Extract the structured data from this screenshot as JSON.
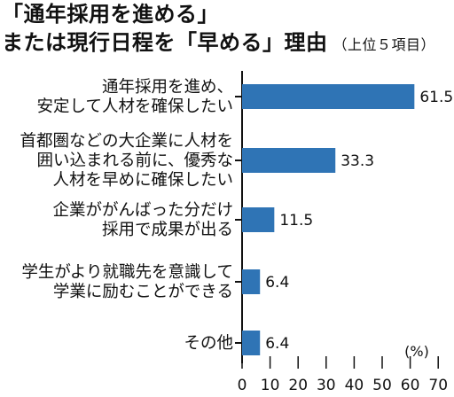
{
  "title": {
    "line1": "「通年採用を進める」",
    "line2": "または現行日程を「早める」理由",
    "subtitle": "（上位５項目）"
  },
  "colors": {
    "bar": "#2f74b5",
    "axis": "#111111",
    "text": "#111111"
  },
  "chart_data": {
    "type": "bar",
    "orientation": "horizontal",
    "title": "「通年採用を進める」または現行日程を「早める」理由",
    "subtitle": "（上位５項目）",
    "unit": "(%)",
    "categories": [
      [
        "通年採用を進め、",
        "安定して人材を確保したい"
      ],
      [
        "首都圏などの大企業に人材を",
        "囲い込まれる前に、優秀な",
        "人材を早めに確保したい"
      ],
      [
        "企業ががんばった分だけ",
        "採用で成果が出る"
      ],
      [
        "学生がより就職先を意識して",
        "学業に励むことができる"
      ],
      [
        "その他"
      ]
    ],
    "values": [
      61.5,
      33.3,
      11.5,
      6.4,
      6.4
    ],
    "value_labels": [
      "61.5",
      "33.3",
      "11.5",
      "6.4",
      "6.4"
    ],
    "xlim": [
      0,
      70
    ],
    "xticks": [
      0,
      10,
      20,
      30,
      40,
      50,
      60,
      70
    ],
    "grid": false
  }
}
